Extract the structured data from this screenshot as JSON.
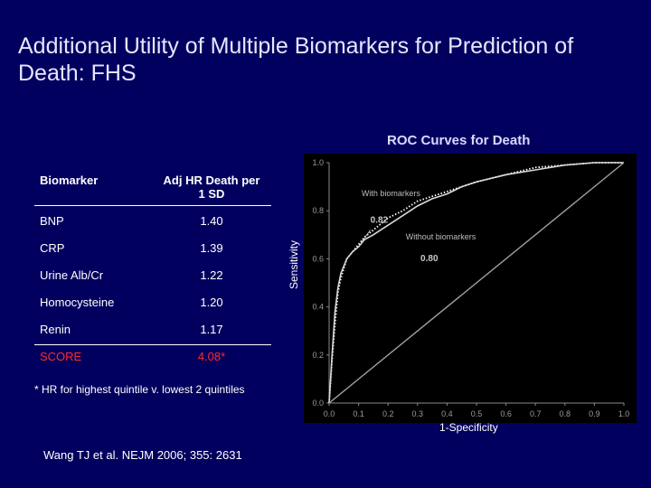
{
  "slide": {
    "title_line1": "Additional Utility of Multiple Biomarkers for Prediction of",
    "title_line2": "Death: FHS",
    "footnote": "* HR for highest quintile v. lowest 2 quintiles",
    "citation": "Wang TJ et al. NEJM 2006; 355: 2631",
    "background_color": "#02005e"
  },
  "table": {
    "header": {
      "biomarker": "Biomarker",
      "hr_line1": "Adj HR Death per",
      "hr_line2": "1 SD"
    },
    "rows": [
      {
        "biomarker": "BNP",
        "hr": "1.40"
      },
      {
        "biomarker": "CRP",
        "hr": "1.39"
      },
      {
        "biomarker": "Urine Alb/Cr",
        "hr": "1.22"
      },
      {
        "biomarker": "Homocysteine",
        "hr": "1.20"
      },
      {
        "biomarker": "Renin",
        "hr": "1.17"
      }
    ],
    "score_row": {
      "biomarker": "SCORE",
      "hr": "4.08*",
      "color": "#ff2a2a"
    }
  },
  "chart_data": {
    "type": "line",
    "title": "ROC Curves for Death",
    "xlabel": "1-Specificity",
    "ylabel": "Sensitivity",
    "xlim": [
      0.0,
      1.0
    ],
    "ylim": [
      0.0,
      1.0
    ],
    "xticks": [
      "0.0",
      "0.1",
      "0.2",
      "0.3",
      "0.4",
      "0.5",
      "0.6",
      "0.7",
      "0.8",
      "0.9",
      "1.0"
    ],
    "yticks": [
      "0.0",
      "0.2",
      "0.4",
      "0.6",
      "0.8",
      "1.0"
    ],
    "grid": false,
    "series": [
      {
        "name": "With biomarkers",
        "style": "dotted",
        "auc_label": "0.82",
        "x": [
          0.0,
          0.01,
          0.02,
          0.03,
          0.04,
          0.05,
          0.06,
          0.08,
          0.1,
          0.12,
          0.15,
          0.2,
          0.25,
          0.3,
          0.35,
          0.4,
          0.45,
          0.5,
          0.6,
          0.7,
          0.8,
          0.9,
          1.0
        ],
        "y": [
          0.0,
          0.18,
          0.33,
          0.46,
          0.52,
          0.56,
          0.6,
          0.63,
          0.66,
          0.69,
          0.72,
          0.77,
          0.8,
          0.84,
          0.86,
          0.88,
          0.9,
          0.92,
          0.95,
          0.98,
          0.99,
          1.0,
          1.0
        ]
      },
      {
        "name": "Without biomarkers",
        "style": "solid",
        "auc_label": "0.80",
        "x": [
          0.0,
          0.01,
          0.02,
          0.03,
          0.04,
          0.05,
          0.06,
          0.08,
          0.1,
          0.12,
          0.15,
          0.2,
          0.25,
          0.3,
          0.35,
          0.4,
          0.45,
          0.5,
          0.6,
          0.7,
          0.8,
          0.9,
          1.0
        ],
        "y": [
          0.0,
          0.2,
          0.38,
          0.48,
          0.54,
          0.57,
          0.6,
          0.63,
          0.65,
          0.68,
          0.7,
          0.74,
          0.78,
          0.82,
          0.85,
          0.87,
          0.9,
          0.92,
          0.95,
          0.97,
          0.99,
          1.0,
          1.0
        ]
      },
      {
        "name": "",
        "style": "reference",
        "x": [
          0.0,
          1.0
        ],
        "y": [
          0.0,
          1.0
        ]
      }
    ]
  }
}
